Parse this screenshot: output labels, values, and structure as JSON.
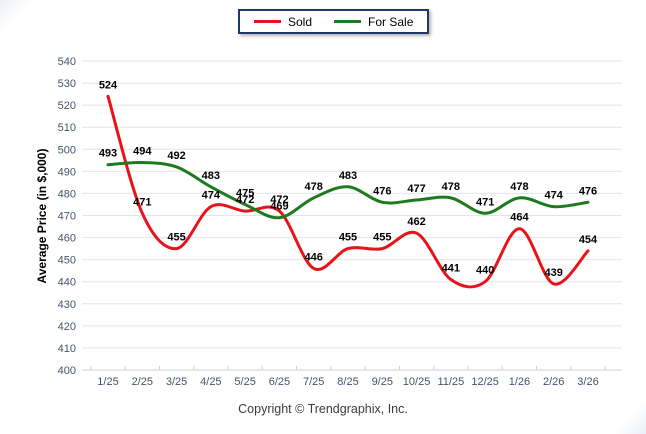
{
  "legend": {
    "border_color": "#1f3864",
    "items": [
      {
        "label": "Sold",
        "color": "#e8131a"
      },
      {
        "label": "For Sale",
        "color": "#1e7a1e"
      }
    ]
  },
  "y_axis_title": "Average Price (in $,000)",
  "footer_text": "Copyright © Trendgraphix, Inc.",
  "colors": {
    "sold_line": "#e8131a",
    "for_sale_line": "#1e7a1e",
    "gridline": "#e4e4e4",
    "axis_line": "#cfcfcf",
    "tick_label": "#44546a",
    "data_label": "#000000",
    "legend_border": "#1f3864"
  },
  "chart_data": {
    "type": "line",
    "title": "",
    "xlabel": "",
    "ylabel": "Average Price (in $,000)",
    "categories": [
      "1/25",
      "2/25",
      "3/25",
      "4/25",
      "5/25",
      "6/25",
      "7/25",
      "8/25",
      "9/25",
      "10/25",
      "11/25",
      "12/25",
      "1/26",
      "2/26",
      "3/26"
    ],
    "series": [
      {
        "name": "Sold",
        "color": "#e8131a",
        "values": [
          524,
          471,
          455,
          474,
          472,
          472,
          446,
          455,
          455,
          462,
          441,
          440,
          464,
          439,
          454
        ]
      },
      {
        "name": "For Sale",
        "color": "#1e7a1e",
        "values": [
          493,
          494,
          492,
          483,
          475,
          469,
          478,
          483,
          476,
          477,
          478,
          471,
          478,
          474,
          476
        ]
      }
    ],
    "ylim": [
      400,
      540
    ],
    "ytick_step": 10,
    "grid": true,
    "smooth": true,
    "data_labels": true,
    "legend_position": "top-center"
  }
}
